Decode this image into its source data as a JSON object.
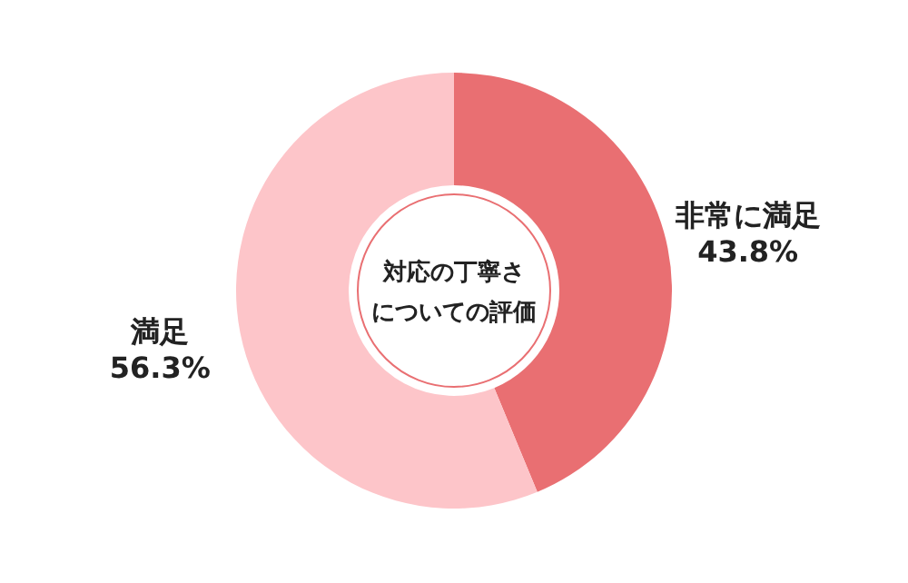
{
  "chart_data": {
    "type": "donut",
    "title": "対応の丁寧さについての評価",
    "categories": [
      "非常に満足",
      "満足"
    ],
    "values": [
      43.8,
      56.3
    ],
    "value_labels": [
      "43.8%",
      "56.3%"
    ],
    "colors": [
      "#e96f72",
      "#fdc5c9"
    ]
  }
}
